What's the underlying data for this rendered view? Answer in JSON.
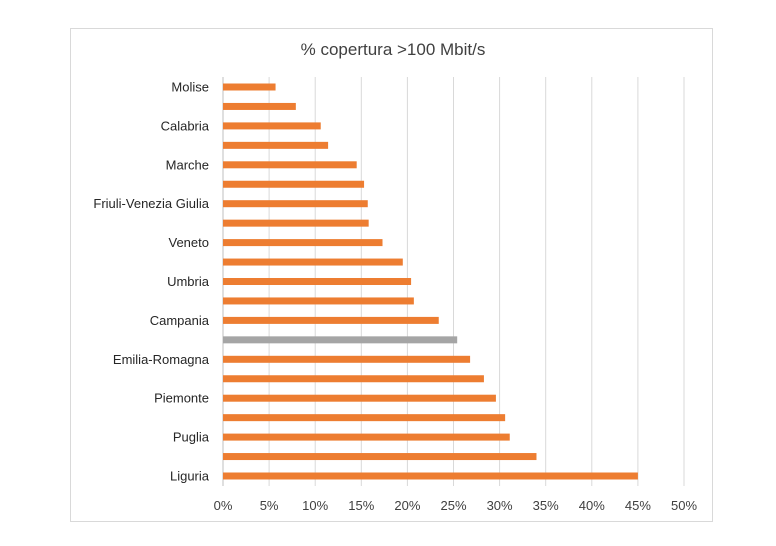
{
  "chart_data": {
    "type": "bar",
    "orientation": "horizontal",
    "title": "% copertura >100 Mbit/s",
    "xlabel": "",
    "ylabel": "",
    "xlim": [
      0,
      50
    ],
    "x_ticks": [
      "0%",
      "5%",
      "10%",
      "15%",
      "20%",
      "25%",
      "30%",
      "35%",
      "40%",
      "45%",
      "50%"
    ],
    "grid": "vertical",
    "colors": {
      "default": "#ED7D31",
      "highlight": "#A5A5A5",
      "grid": "#D9D9D9"
    },
    "categories": [
      "Molise",
      "",
      "Calabria",
      "",
      "Marche",
      "",
      "Friuli-Venezia Giulia",
      "",
      "Veneto",
      "",
      "Umbria",
      "",
      "Campania",
      "",
      "Emilia-Romagna",
      "",
      "Piemonte",
      "",
      "Puglia",
      "",
      "Liguria"
    ],
    "values": [
      5.7,
      7.9,
      10.6,
      11.4,
      14.5,
      15.3,
      15.7,
      15.8,
      17.3,
      19.5,
      20.4,
      20.7,
      23.4,
      25.4,
      26.8,
      28.3,
      29.6,
      30.6,
      31.1,
      34.0,
      45.0
    ],
    "highlight_index": 13
  }
}
